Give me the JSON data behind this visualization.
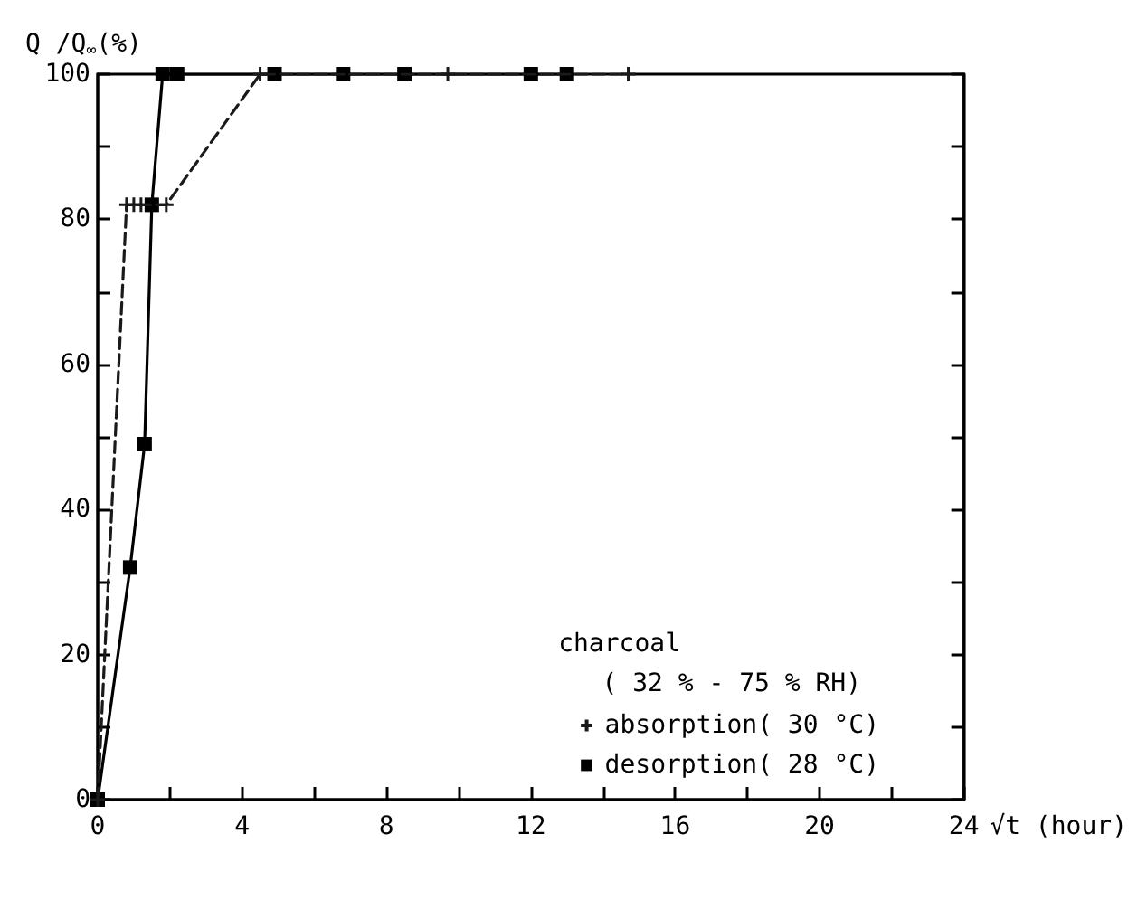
{
  "chart_data": {
    "type": "line",
    "ylabel": "Q /Q$_{∞}$(%)",
    "xlabel": "√t (hour)",
    "legend_title": "charcoal",
    "annotations": [
      "( 32 % - 75 % RH)"
    ],
    "xlim": [
      0,
      24
    ],
    "xticks": [
      0,
      {
        "value": 2,
        "label": null
      },
      4,
      {
        "value": 6,
        "label": null
      },
      8,
      {
        "value": 10,
        "label": null
      },
      12,
      {
        "value": 14,
        "label": null
      },
      16,
      {
        "value": 18,
        "label": null
      },
      20,
      {
        "value": 22,
        "label": null
      },
      24
    ],
    "ylim": [
      0,
      100
    ],
    "yticks": [
      0,
      {
        "value": 10,
        "label": null
      },
      20,
      {
        "value": 30,
        "label": null
      },
      40,
      {
        "value": 50,
        "label": null
      },
      60,
      {
        "value": 70,
        "label": null
      },
      80,
      {
        "value": 90,
        "label": null
      },
      100
    ],
    "grid": false,
    "legend": "bottom right",
    "series": [
      {
        "name": "absorption( 30 °C)",
        "color": "#1a1a1a",
        "marker": "cross",
        "line_style": "dashed",
        "x": [
          0,
          0.8,
          1,
          1.2,
          1.9,
          4.5,
          9.7,
          14.7
        ],
        "values": [
          0,
          82,
          82,
          82,
          82,
          100,
          100,
          100
        ]
      },
      {
        "name": "desorption( 28 °C)",
        "color": "#000000",
        "marker": "square",
        "line_style": "solid",
        "x": [
          0,
          0.9,
          1.3,
          1.5,
          1.8,
          2.2,
          4.9,
          6.8,
          8.5,
          12,
          13
        ],
        "values": [
          0,
          32,
          49,
          82,
          100,
          100,
          100,
          100,
          100,
          100,
          100
        ]
      }
    ]
  }
}
